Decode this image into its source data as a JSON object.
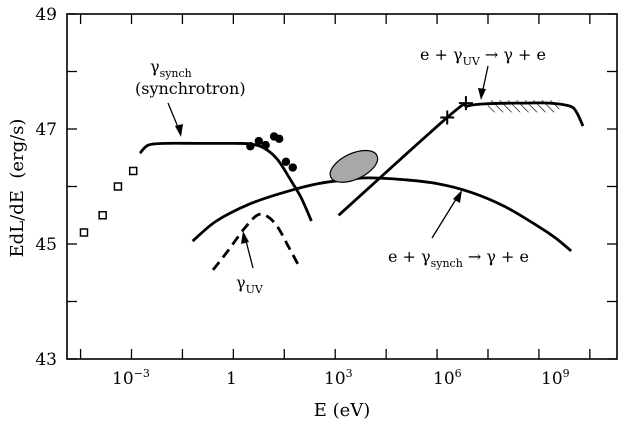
{
  "chart_data": {
    "type": "line",
    "xlabel": "E (eV)",
    "ylabel": "EdL/dE  (erg/s)",
    "x_scale": "log10",
    "xlim_log10": [
      -4.9,
      11.3
    ],
    "ylim": [
      43,
      49
    ],
    "x_tick_labels": [
      {
        "log10": -3,
        "base": "10",
        "exp": "−3"
      },
      {
        "log10": 0,
        "base": "1",
        "exp": ""
      },
      {
        "log10": 3,
        "base": "10",
        "exp": "3"
      },
      {
        "log10": 6,
        "base": "10",
        "exp": "6"
      },
      {
        "log10": 9,
        "base": "10",
        "exp": "9"
      }
    ],
    "x_minor_ticks_log10": [
      -4.5,
      -1.5,
      1.5,
      4.5,
      7.5,
      10.5
    ],
    "y_tick_labels": [
      43,
      45,
      47,
      49
    ],
    "y_minor_ticks": [
      44,
      46,
      48
    ],
    "series": [
      {
        "name": "gamma_synch",
        "style": "solid",
        "points": [
          [
            -2.75,
            46.58
          ],
          [
            -2.5,
            46.72
          ],
          [
            -2.0,
            46.75
          ],
          [
            -1.0,
            46.75
          ],
          [
            0.0,
            46.75
          ],
          [
            0.5,
            46.74
          ],
          [
            0.9,
            46.67
          ],
          [
            1.3,
            46.47
          ],
          [
            1.7,
            46.1
          ],
          [
            2.0,
            45.8
          ],
          [
            2.3,
            45.4
          ]
        ]
      },
      {
        "name": "gamma_UV",
        "style": "dashed",
        "points": [
          [
            -0.6,
            44.55
          ],
          [
            -0.2,
            44.85
          ],
          [
            0.3,
            45.25
          ],
          [
            0.7,
            45.5
          ],
          [
            1.0,
            45.48
          ],
          [
            1.3,
            45.3
          ],
          [
            1.6,
            44.98
          ],
          [
            1.9,
            44.65
          ]
        ]
      },
      {
        "name": "IC_synch",
        "style": "solid",
        "points": [
          [
            -1.2,
            45.05
          ],
          [
            -0.5,
            45.4
          ],
          [
            0.5,
            45.7
          ],
          [
            1.5,
            45.9
          ],
          [
            2.5,
            46.05
          ],
          [
            3.5,
            46.13
          ],
          [
            4.0,
            46.15
          ],
          [
            5.0,
            46.12
          ],
          [
            6.0,
            46.05
          ],
          [
            7.0,
            45.9
          ],
          [
            8.0,
            45.65
          ],
          [
            9.0,
            45.3
          ],
          [
            9.5,
            45.1
          ],
          [
            9.95,
            44.88
          ]
        ]
      },
      {
        "name": "IC_UV",
        "style": "solid",
        "points": [
          [
            3.1,
            45.5
          ],
          [
            6.4,
            47.25
          ],
          [
            6.9,
            47.4
          ],
          [
            7.5,
            47.44
          ],
          [
            8.5,
            47.45
          ],
          [
            9.3,
            47.45
          ],
          [
            9.9,
            47.4
          ],
          [
            10.1,
            47.3
          ],
          [
            10.3,
            47.05
          ]
        ]
      }
    ],
    "filled_circles": [
      [
        0.5,
        46.7
      ],
      [
        0.75,
        46.79
      ],
      [
        0.95,
        46.72
      ],
      [
        1.2,
        46.87
      ],
      [
        1.35,
        46.83
      ],
      [
        1.55,
        46.43
      ],
      [
        1.75,
        46.33
      ]
    ],
    "open_squares": [
      [
        -4.4,
        45.2
      ],
      [
        -3.85,
        45.5
      ],
      [
        -3.4,
        46
      ],
      [
        -2.95,
        46.27
      ]
    ],
    "plus_markers": [
      [
        6.3,
        47.2
      ],
      [
        6.85,
        47.45
      ]
    ],
    "ellipse": {
      "center": [
        3.55,
        46.35
      ],
      "rx_dex": 0.75,
      "ry": 0.07,
      "angle_deg": -25
    },
    "hatched_limit": {
      "x_log10": [
        7.5,
        9.6
      ],
      "y": [
        47.29,
        47.5
      ]
    },
    "annotations": [
      {
        "id": "synch",
        "particle": "γ",
        "sub": "synch",
        "text": "(synchrotron)"
      },
      {
        "id": "uv",
        "particle": "γ",
        "sub": "UV"
      },
      {
        "id": "ic_uv",
        "pre": "e + γ",
        "sub": "UV",
        "post": " → γ + e"
      },
      {
        "id": "ic_synch",
        "pre": "e + γ",
        "sub": "synch",
        "post": " → γ + e"
      }
    ]
  }
}
